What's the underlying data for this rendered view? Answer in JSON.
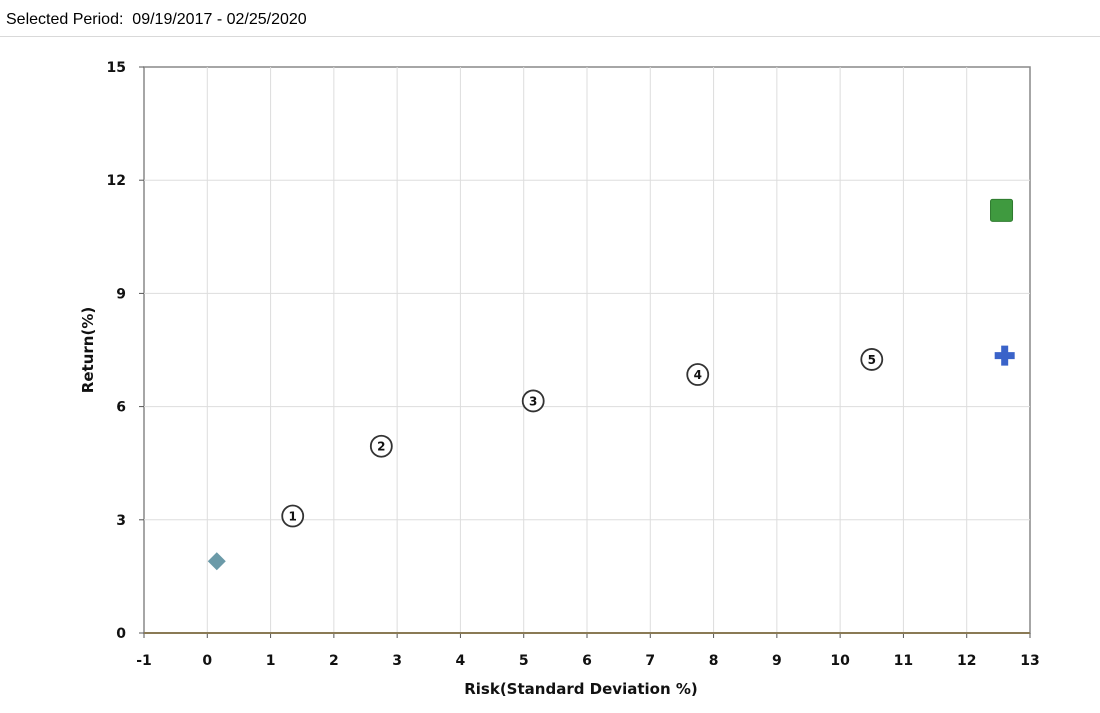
{
  "header": {
    "period_label": "Selected Period:",
    "period_value": "09/19/2017 - 02/25/2020"
  },
  "chart_data": {
    "type": "scatter",
    "xlabel": "Risk(Standard Deviation %)",
    "ylabel": "Return(%)",
    "xlim": [
      -1,
      13
    ],
    "ylim": [
      0,
      15
    ],
    "xticks": [
      -1,
      0,
      1,
      2,
      3,
      4,
      5,
      6,
      7,
      8,
      9,
      10,
      11,
      12,
      13
    ],
    "yticks": [
      0,
      3,
      6,
      9,
      12,
      15
    ],
    "grid": true,
    "points": [
      {
        "label": "",
        "marker": "diamond",
        "color": "#6b9aa8",
        "x": 0.15,
        "y": 1.9
      },
      {
        "label": "1",
        "marker": "circle-number",
        "color": "#333333",
        "x": 1.35,
        "y": 3.1
      },
      {
        "label": "2",
        "marker": "circle-number",
        "color": "#333333",
        "x": 2.75,
        "y": 4.95
      },
      {
        "label": "3",
        "marker": "circle-number",
        "color": "#333333",
        "x": 5.15,
        "y": 6.15
      },
      {
        "label": "4",
        "marker": "circle-number",
        "color": "#333333",
        "x": 7.75,
        "y": 6.85
      },
      {
        "label": "5",
        "marker": "circle-number",
        "color": "#333333",
        "x": 10.5,
        "y": 7.25
      },
      {
        "label": "",
        "marker": "square",
        "color": "#3f9a3f",
        "x": 12.55,
        "y": 11.2
      },
      {
        "label": "",
        "marker": "cross",
        "color": "#3a63c9",
        "x": 12.6,
        "y": 7.35
      }
    ]
  }
}
